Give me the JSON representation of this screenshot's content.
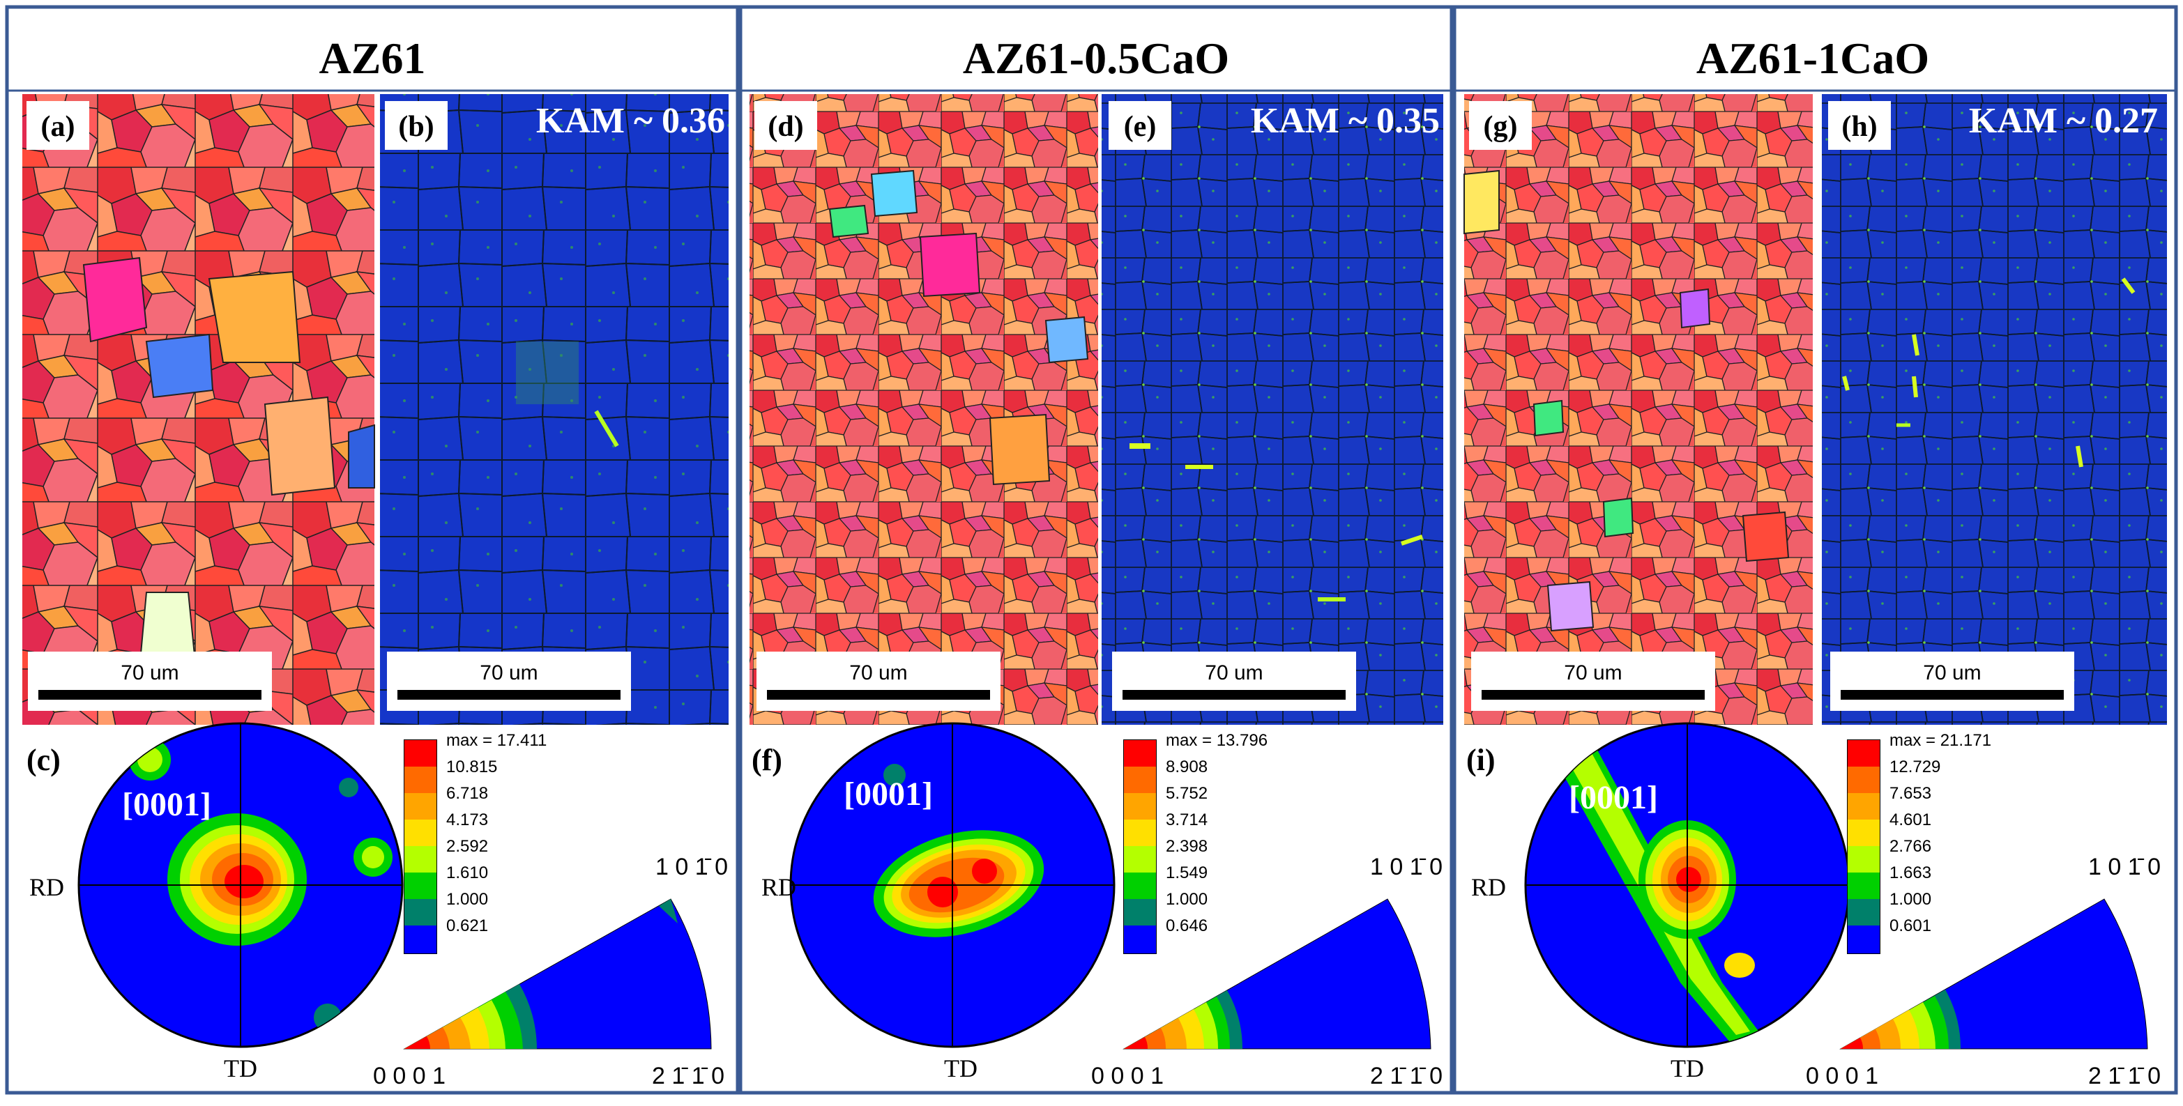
{
  "figure": {
    "panels": [
      {
        "title": "AZ61",
        "ipf_label": "(a)",
        "kam_label": "(b)",
        "kam_value": "KAM ~ 0.36",
        "scale_ipf": "70 um",
        "scale_kam": "70 um",
        "pf_label": "(c)",
        "pole": "[0001]",
        "rd": "RD",
        "td": "TD",
        "legend_max": "max = 17.411",
        "legend_levels": [
          "10.815",
          "6.718",
          "4.173",
          "2.592",
          "1.610",
          "1.000",
          "0.621"
        ],
        "ipt_top": "1 0 1̄ 0",
        "ipt_left": "0 0 0 1",
        "ipt_right": "2 1̄ 1̄ 0"
      },
      {
        "title": "AZ61-0.5CaO",
        "ipf_label": "(d)",
        "kam_label": "(e)",
        "kam_value": "KAM ~ 0.35",
        "scale_ipf": "70 um",
        "scale_kam": "70 um",
        "pf_label": "(f)",
        "pole": "[0001]",
        "rd": "RD",
        "td": "TD",
        "legend_max": "max = 13.796",
        "legend_levels": [
          "8.908",
          "5.752",
          "3.714",
          "2.398",
          "1.549",
          "1.000",
          "0.646"
        ],
        "ipt_top": "1 0 1̄ 0",
        "ipt_left": "0 0 0 1",
        "ipt_right": "2 1̄ 1̄ 0"
      },
      {
        "title": "AZ61-1CaO",
        "ipf_label": "(g)",
        "kam_label": "(h)",
        "kam_value": "KAM ~ 0.27",
        "scale_ipf": "70 um",
        "scale_kam": "70 um",
        "pf_label": "(i)",
        "pole": "[0001]",
        "rd": "RD",
        "td": "TD",
        "legend_max": "max = 21.171",
        "legend_levels": [
          "12.729",
          "7.653",
          "4.601",
          "2.766",
          "1.663",
          "1.000",
          "0.601"
        ],
        "ipt_top": "1 0 1̄ 0",
        "ipt_left": "0 0 0 1",
        "ipt_right": "2 1̄ 1̄ 0"
      }
    ],
    "legend_colors": [
      "#ff0000",
      "#ff6a00",
      "#ffa500",
      "#ffe000",
      "#b4ff00",
      "#00d000",
      "#00806a",
      "#0000ff"
    ],
    "frame_color": "#3a5a94",
    "kam_background": "#1536c9",
    "pole_figure_background": "#0000ff"
  }
}
